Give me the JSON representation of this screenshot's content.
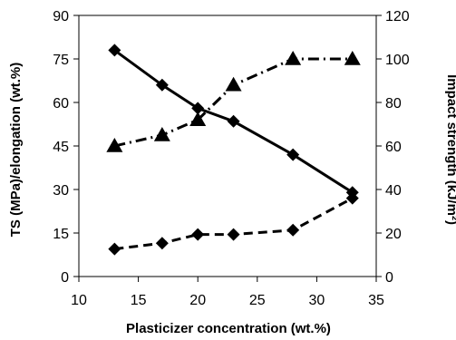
{
  "chart_data": {
    "type": "line",
    "xlabel": "Plasticizer concentration (wt.%)",
    "ylabel_left": "TS (MPa)/elongation (wt.%)",
    "ylabel_right": "Impact strength (kJ/m²)",
    "xlim": [
      10,
      35
    ],
    "ylim_left": [
      0,
      90
    ],
    "ylim_right": [
      0,
      120
    ],
    "xticks": [
      10,
      15,
      20,
      25,
      30,
      35
    ],
    "yticks_left": [
      0,
      15,
      30,
      45,
      60,
      75,
      90
    ],
    "yticks_right": [
      0,
      20,
      40,
      60,
      80,
      100,
      120
    ],
    "grid": false,
    "series": [
      {
        "axis": "left",
        "marker": "diamond",
        "line": "solid",
        "x": [
          13,
          17,
          20,
          23,
          28,
          33
        ],
        "values": [
          78,
          66,
          58,
          53.5,
          42,
          29
        ]
      },
      {
        "axis": "left",
        "marker": "diamond",
        "line": "dashed",
        "x": [
          13,
          17,
          20,
          23,
          28,
          33
        ],
        "values": [
          9.5,
          11.5,
          14.5,
          14.5,
          16,
          27
        ]
      },
      {
        "axis": "right",
        "marker": "triangle",
        "line": "dash-dot",
        "x": [
          13,
          17,
          20,
          23,
          28,
          33
        ],
        "values": [
          60,
          65,
          72,
          88,
          100,
          100
        ]
      }
    ]
  }
}
